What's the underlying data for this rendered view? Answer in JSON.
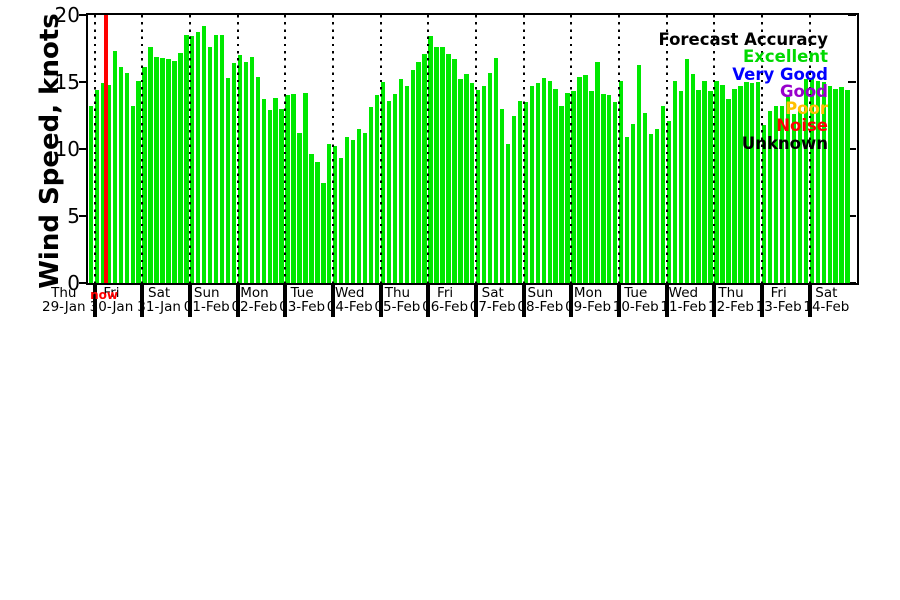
{
  "chart_data": {
    "type": "bar",
    "title": "",
    "ylabel": "Wind Speed, knots",
    "xlabel": "",
    "ylim": [
      0,
      20
    ],
    "yticks": [
      0,
      5,
      10,
      15,
      20
    ],
    "units": "knots",
    "bar_color": "#00e800",
    "grid": "vertical dotted lines at each day boundary",
    "legend_position": "upper-right",
    "bars_per_day": 8,
    "first_day_bar_count": 1,
    "days": [
      {
        "day": "Thu",
        "date": "29-Jan"
      },
      {
        "day": "Fri",
        "date": "30-Jan"
      },
      {
        "day": "Sat",
        "date": "31-Jan"
      },
      {
        "day": "Sun",
        "date": "01-Feb"
      },
      {
        "day": "Mon",
        "date": "02-Feb"
      },
      {
        "day": "Tue",
        "date": "03-Feb"
      },
      {
        "day": "Wed",
        "date": "04-Feb"
      },
      {
        "day": "Thu",
        "date": "05-Feb"
      },
      {
        "day": "Fri",
        "date": "06-Feb"
      },
      {
        "day": "Sat",
        "date": "07-Feb"
      },
      {
        "day": "Sun",
        "date": "08-Feb"
      },
      {
        "day": "Mon",
        "date": "09-Feb"
      },
      {
        "day": "Tue",
        "date": "10-Feb"
      },
      {
        "day": "Wed",
        "date": "11-Feb"
      },
      {
        "day": "Thu",
        "date": "12-Feb"
      },
      {
        "day": "Fri",
        "date": "13-Feb"
      },
      {
        "day": "Sat",
        "date": "14-Feb"
      }
    ],
    "values": [
      13.2,
      14.4,
      14.9,
      14.8,
      17.3,
      16.1,
      15.7,
      13.2,
      15.1,
      16.1,
      17.6,
      16.9,
      16.8,
      16.7,
      16.6,
      17.2,
      18.5,
      18.4,
      18.7,
      19.2,
      17.6,
      18.5,
      18.5,
      15.3,
      16.4,
      17.0,
      16.5,
      16.9,
      15.4,
      13.7,
      12.9,
      13.8,
      13.0,
      14.0,
      14.1,
      11.2,
      14.2,
      9.6,
      9.0,
      7.5,
      10.4,
      10.2,
      9.3,
      10.9,
      10.7,
      11.5,
      11.2,
      13.1,
      14.0,
      15.0,
      13.6,
      14.1,
      15.2,
      14.7,
      15.9,
      16.5,
      17.1,
      18.4,
      17.6,
      17.6,
      17.1,
      16.7,
      15.2,
      15.6,
      14.9,
      14.4,
      14.7,
      15.7,
      16.8,
      13.0,
      10.4,
      12.5,
      13.6,
      13.5,
      14.7,
      14.9,
      15.3,
      15.1,
      14.5,
      13.2,
      14.2,
      14.3,
      15.4,
      15.5,
      14.3,
      16.5,
      14.1,
      14.0,
      13.5,
      15.1,
      10.9,
      11.9,
      16.3,
      12.7,
      11.1,
      11.5,
      13.2,
      12.1,
      15.1,
      14.3,
      16.7,
      15.6,
      14.4,
      15.1,
      14.3,
      15.1,
      14.8,
      13.7,
      14.5,
      14.7,
      15.0,
      14.9,
      15.0,
      11.8,
      12.8,
      13.2,
      13.2,
      13.9,
      12.6,
      12.8,
      15.2,
      15.3,
      15.1,
      15.0,
      14.7,
      14.5,
      14.6,
      14.4
    ]
  },
  "legend": {
    "title": "Forecast Accuracy",
    "entries": [
      {
        "label": "Excellent",
        "color": "#00d900"
      },
      {
        "label": "Very Good",
        "color": "#0000ff"
      },
      {
        "label": "Good",
        "color": "#9900cc"
      },
      {
        "label": "Poor",
        "color": "#ffc000"
      },
      {
        "label": "Noise",
        "color": "#ff0000"
      },
      {
        "label": "Unknown",
        "color": "#000000"
      }
    ]
  },
  "now_marker": {
    "label": "now",
    "color": "#ff0000",
    "bar_index": 2.5
  }
}
